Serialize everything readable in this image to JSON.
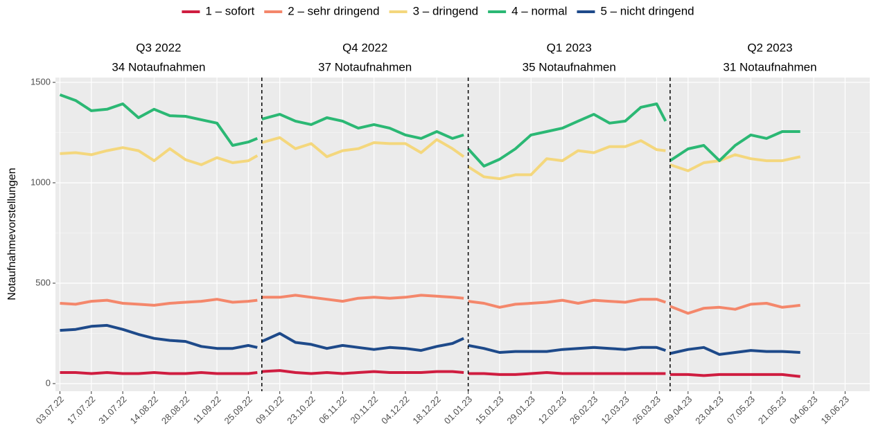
{
  "chart_data": {
    "type": "line",
    "ylabel": "Notaufnahmevorstellungen",
    "facets": [
      {
        "title": "Q3 2022",
        "subtitle": "34 Notaufnahmen"
      },
      {
        "title": "Q4 2022",
        "subtitle": "37 Notaufnahmen"
      },
      {
        "title": "Q1 2023",
        "subtitle": "35 Notaufnahmen"
      },
      {
        "title": "Q2 2023",
        "subtitle": "31 Notaufnahmen"
      }
    ],
    "quarter_lines": [
      "01.10.22",
      "01.01.23",
      "01.04.23"
    ],
    "x": [
      "03.07.22",
      "10.07.22",
      "17.07.22",
      "24.07.22",
      "31.07.22",
      "07.08.22",
      "14.08.22",
      "21.08.22",
      "28.08.22",
      "04.09.22",
      "11.09.22",
      "18.09.22",
      "25.09.22",
      "29.09.22",
      "30.09.22",
      "01.10.22",
      "09.10.22",
      "16.10.22",
      "23.10.22",
      "30.10.22",
      "06.11.22",
      "13.11.22",
      "20.11.22",
      "27.11.22",
      "04.12.22",
      "11.12.22",
      "18.12.22",
      "25.12.22",
      "30.12.22",
      "31.12.22",
      "01.01.23",
      "08.01.23",
      "15.01.23",
      "22.01.23",
      "29.01.23",
      "05.02.23",
      "12.02.23",
      "19.02.23",
      "26.02.23",
      "05.03.23",
      "12.03.23",
      "19.03.23",
      "26.03.23",
      "30.03.23",
      "31.03.23",
      "01.04.23",
      "09.04.23",
      "16.04.23",
      "23.04.23",
      "30.04.23",
      "07.05.23",
      "14.05.23",
      "21.05.23",
      "29.05.23"
    ],
    "series": [
      {
        "name": "1 – sofort",
        "color": "#cf1d40",
        "values": [
          55,
          55,
          50,
          55,
          50,
          50,
          55,
          50,
          50,
          55,
          50,
          50,
          50,
          55,
          null,
          60,
          65,
          55,
          50,
          55,
          50,
          55,
          60,
          55,
          55,
          55,
          60,
          60,
          55,
          null,
          50,
          50,
          45,
          45,
          50,
          55,
          50,
          50,
          50,
          50,
          50,
          50,
          50,
          50,
          null,
          45,
          45,
          40,
          45,
          45,
          45,
          45,
          45,
          35
        ]
      },
      {
        "name": "2 – sehr dringend",
        "color": "#f4876b",
        "values": [
          400,
          395,
          410,
          415,
          400,
          395,
          390,
          400,
          405,
          410,
          420,
          405,
          410,
          415,
          null,
          430,
          430,
          440,
          430,
          420,
          410,
          425,
          430,
          425,
          430,
          440,
          435,
          430,
          425,
          null,
          410,
          400,
          380,
          395,
          400,
          405,
          415,
          400,
          415,
          410,
          405,
          420,
          420,
          405,
          null,
          385,
          350,
          375,
          380,
          370,
          395,
          400,
          380,
          390
        ]
      },
      {
        "name": "3 – dringend",
        "color": "#f4d77d",
        "values": [
          1145,
          1150,
          1140,
          1160,
          1175,
          1160,
          1110,
          1170,
          1115,
          1090,
          1125,
          1100,
          1110,
          1135,
          null,
          1200,
          1225,
          1170,
          1195,
          1130,
          1160,
          1170,
          1200,
          1195,
          1195,
          1150,
          1215,
          1170,
          1130,
          null,
          1080,
          1030,
          1020,
          1040,
          1040,
          1120,
          1110,
          1160,
          1150,
          1180,
          1180,
          1210,
          1165,
          1160,
          null,
          1090,
          1060,
          1100,
          1110,
          1140,
          1120,
          1110,
          1110,
          1130
        ]
      },
      {
        "name": "4 – normal",
        "color": "#2bb874",
        "values": [
          1438,
          1410,
          1359,
          1366,
          1393,
          1324,
          1366,
          1334,
          1331,
          1314,
          1297,
          1186,
          1203,
          1221,
          null,
          1317,
          1341,
          1307,
          1290,
          1324,
          1307,
          1272,
          1290,
          1272,
          1238,
          1221,
          1255,
          1221,
          1238,
          null,
          1169,
          1083,
          1117,
          1169,
          1238,
          1255,
          1272,
          1307,
          1341,
          1297,
          1307,
          1376,
          1393,
          1307,
          null,
          1110,
          1169,
          1186,
          1110,
          1186,
          1238,
          1221,
          1255,
          1255
        ]
      },
      {
        "name": "5 – nicht dringend",
        "color": "#1e4a8a",
        "values": [
          265,
          270,
          285,
          290,
          270,
          245,
          225,
          215,
          210,
          185,
          175,
          175,
          190,
          180,
          null,
          210,
          250,
          205,
          195,
          175,
          190,
          180,
          170,
          180,
          175,
          165,
          185,
          200,
          225,
          null,
          190,
          175,
          155,
          160,
          160,
          160,
          170,
          175,
          180,
          175,
          170,
          180,
          180,
          165,
          null,
          150,
          170,
          180,
          145,
          155,
          165,
          160,
          160,
          155
        ]
      }
    ],
    "xlim": [
      "01.07.22",
      "29.06.23"
    ],
    "xticks": [
      "03.07.22",
      "17.07.22",
      "31.07.22",
      "14.08.22",
      "28.08.22",
      "11.09.22",
      "25.09.22",
      "09.10.22",
      "23.10.22",
      "06.11.22",
      "20.11.22",
      "04.12.22",
      "18.12.22",
      "01.01.23",
      "15.01.23",
      "29.01.23",
      "12.02.23",
      "26.02.23",
      "12.03.23",
      "26.03.23",
      "09.04.23",
      "23.04.23",
      "07.05.23",
      "21.05.23",
      "04.06.23",
      "18.06.23"
    ],
    "ylim": [
      -38,
      1524
    ],
    "yticks": [
      0,
      500,
      1000,
      1500
    ],
    "yticks_minor": [
      250,
      750,
      1250
    ],
    "grid": true,
    "legend": "top"
  }
}
